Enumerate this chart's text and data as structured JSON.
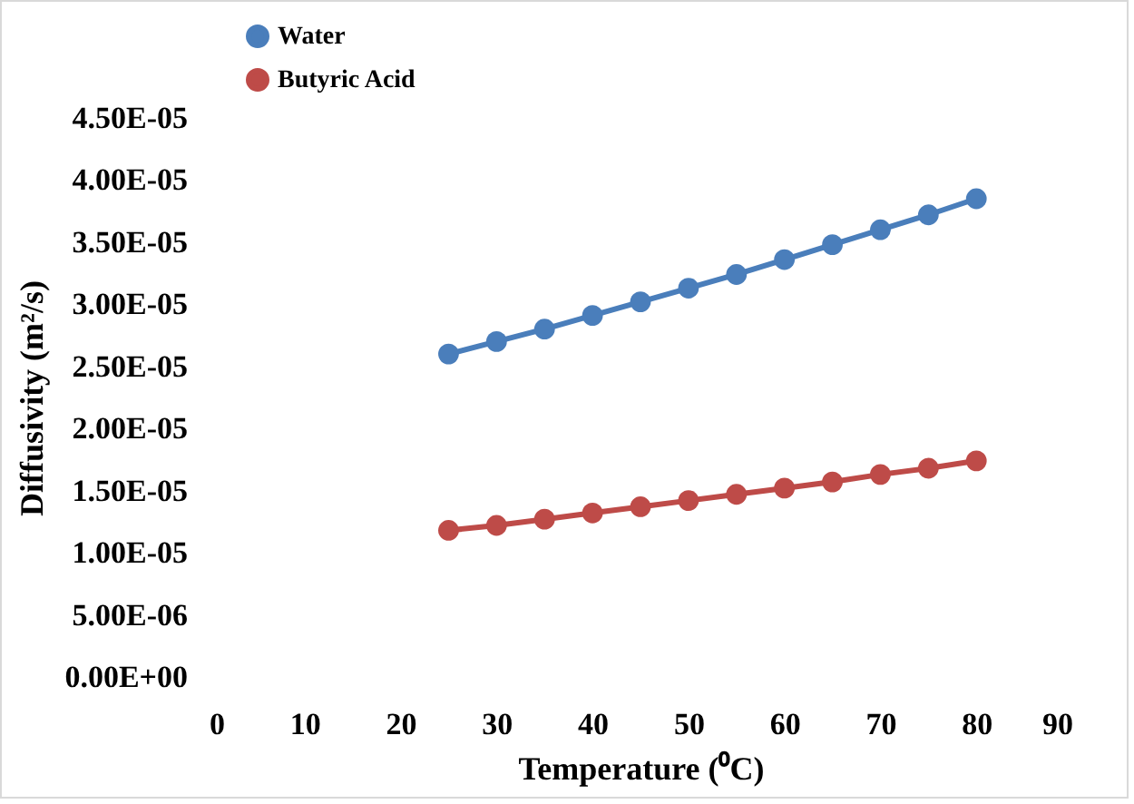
{
  "chart_data": {
    "type": "line",
    "xlabel": "Temperature (⁰C)",
    "ylabel": "Diffusivity (m²/s)",
    "x": [
      25,
      30,
      35,
      40,
      45,
      50,
      55,
      60,
      65,
      70,
      75,
      80
    ],
    "series": [
      {
        "name": "Water",
        "color": "#4a7ebb",
        "values": [
          2.6e-05,
          2.7e-05,
          2.8e-05,
          2.91e-05,
          3.02e-05,
          3.13e-05,
          3.24e-05,
          3.36e-05,
          3.48e-05,
          3.6e-05,
          3.72e-05,
          3.85e-05
        ]
      },
      {
        "name": "Butyric Acid",
        "color": "#be4b48",
        "values": [
          1.18e-05,
          1.22e-05,
          1.27e-05,
          1.32e-05,
          1.37e-05,
          1.42e-05,
          1.47e-05,
          1.52e-05,
          1.57e-05,
          1.63e-05,
          1.68e-05,
          1.74e-05
        ]
      }
    ],
    "xlim": [
      0,
      90
    ],
    "xticks": [
      0,
      10,
      20,
      30,
      40,
      50,
      60,
      70,
      80,
      90
    ],
    "ylim": [
      0,
      4.5e-05
    ],
    "yticks": [
      {
        "value": 0,
        "label": "0.00E+00"
      },
      {
        "value": 5e-06,
        "label": "5.00E-06"
      },
      {
        "value": 1e-05,
        "label": "1.00E-05"
      },
      {
        "value": 1.5e-05,
        "label": "1.50E-05"
      },
      {
        "value": 2e-05,
        "label": "2.00E-05"
      },
      {
        "value": 2.5e-05,
        "label": "2.50E-05"
      },
      {
        "value": 3e-05,
        "label": "3.00E-05"
      },
      {
        "value": 3.5e-05,
        "label": "3.50E-05"
      },
      {
        "value": 4e-05,
        "label": "4.00E-05"
      },
      {
        "value": 4.5e-05,
        "label": "4.50E-05"
      }
    ],
    "grid": false,
    "legend": "top left",
    "marker": "circle",
    "line_style": "solid"
  }
}
